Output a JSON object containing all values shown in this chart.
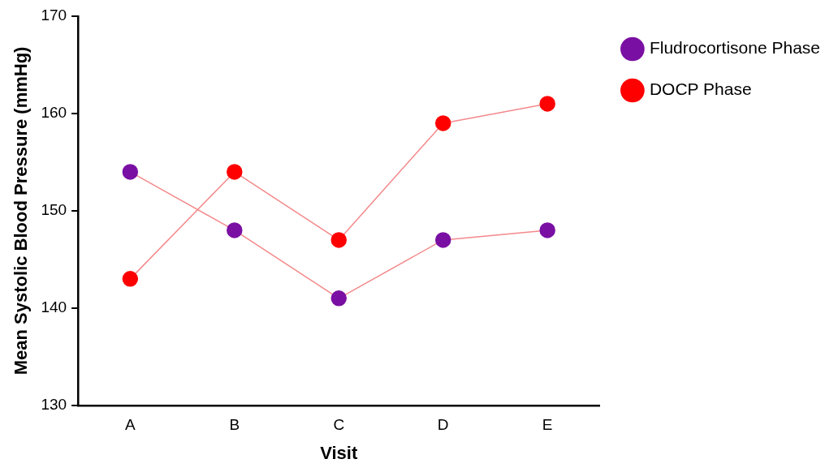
{
  "chart_data": {
    "type": "line",
    "xlabel": "Visit",
    "ylabel": "Mean Systolic Blood Pressure (mmHg)",
    "categories": [
      "A",
      "B",
      "C",
      "D",
      "E"
    ],
    "series": [
      {
        "name": "Fludrocortisone Phase",
        "color": "#7a0fa3",
        "values": [
          154,
          148,
          141,
          147,
          148
        ]
      },
      {
        "name": "DOCP Phase",
        "color": "#ff0000",
        "values": [
          143,
          154,
          147,
          159,
          161
        ]
      }
    ],
    "ylim": [
      130,
      170
    ],
    "yticks": [
      130,
      140,
      150,
      160,
      170
    ],
    "grid": false,
    "legend": "top right",
    "marker": "circle",
    "line_style": "solid"
  }
}
